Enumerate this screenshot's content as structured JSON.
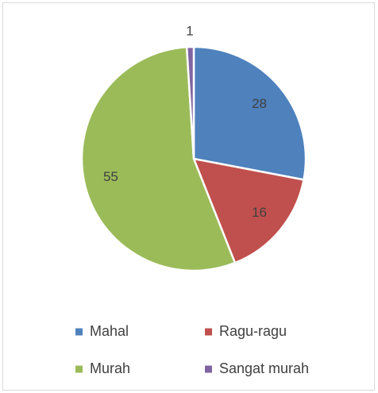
{
  "chart_data": {
    "type": "pie",
    "categories": [
      "Mahal",
      "Ragu-ragu",
      "Murah",
      "Sangat murah"
    ],
    "values": [
      28,
      16,
      55,
      1
    ],
    "colors": [
      "#4f81bd",
      "#c0504d",
      "#9bbb59",
      "#8064a2"
    ],
    "legend": "bottom"
  }
}
